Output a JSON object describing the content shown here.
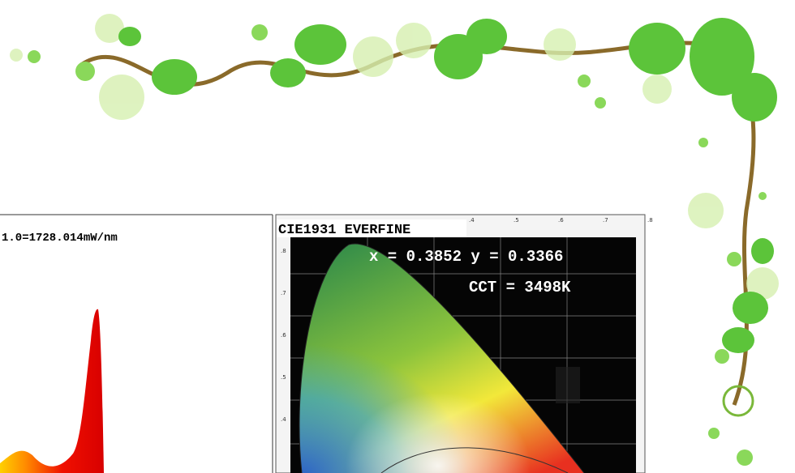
{
  "spectrum": {
    "label": "1.0=1728.014mW/nm"
  },
  "cie": {
    "title": "CIE1931 EVERFINE",
    "coords": "x = 0.3852 y = 0.3366",
    "cct": "CCT = 3498K",
    "x_ticks": [
      ".4",
      ".5",
      ".6",
      ".7",
      ".8"
    ],
    "y_ticks": [
      ".8",
      ".7",
      ".6",
      ".5",
      ".4"
    ]
  }
}
